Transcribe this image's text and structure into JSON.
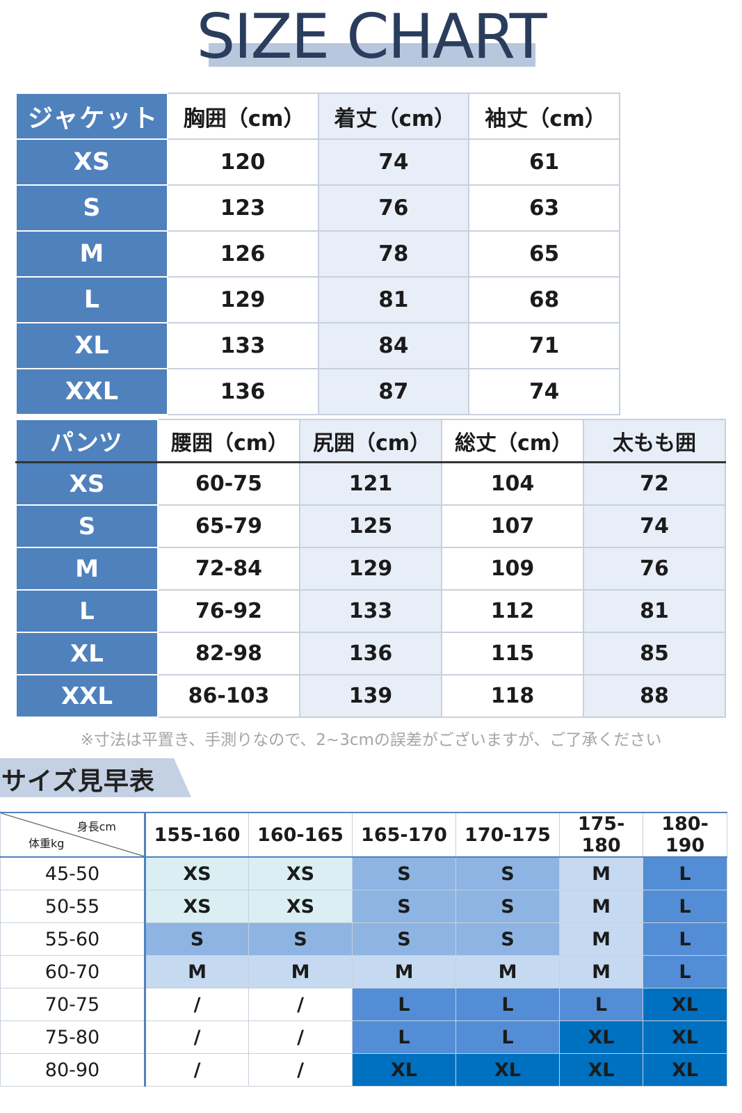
{
  "title": "SIZE CHART",
  "jacket": {
    "corner": "ジャケット",
    "headers": [
      "胸囲（cm）",
      "着丈（cm）",
      "袖丈（cm）"
    ],
    "rows": [
      {
        "size": "XS",
        "values": [
          "120",
          "74",
          "61"
        ]
      },
      {
        "size": "S",
        "values": [
          "123",
          "76",
          "63"
        ]
      },
      {
        "size": "M",
        "values": [
          "126",
          "78",
          "65"
        ]
      },
      {
        "size": "L",
        "values": [
          "129",
          "81",
          "68"
        ]
      },
      {
        "size": "XL",
        "values": [
          "133",
          "84",
          "71"
        ]
      },
      {
        "size": "XXL",
        "values": [
          "136",
          "87",
          "74"
        ]
      }
    ]
  },
  "pants": {
    "corner": "パンツ",
    "headers": [
      "腰囲（cm）",
      "尻囲（cm）",
      "総丈（cm）",
      "太もも囲"
    ],
    "rows": [
      {
        "size": "XS",
        "values": [
          "60-75",
          "121",
          "104",
          "72"
        ]
      },
      {
        "size": "S",
        "values": [
          "65-79",
          "125",
          "107",
          "74"
        ]
      },
      {
        "size": "M",
        "values": [
          "72-84",
          "129",
          "109",
          "76"
        ]
      },
      {
        "size": "L",
        "values": [
          "76-92",
          "133",
          "112",
          "81"
        ]
      },
      {
        "size": "XL",
        "values": [
          "82-98",
          "136",
          "115",
          "85"
        ]
      },
      {
        "size": "XXL",
        "values": [
          "86-103",
          "139",
          "118",
          "88"
        ]
      }
    ]
  },
  "note": "※寸法は平置き、手測りなので、2~3cmの誤差がございますが、ご了承ください",
  "lookup": {
    "section_title": "サイズ見早表",
    "corner_height": "身長cm",
    "corner_weight": "体重kg",
    "height_ranges": [
      "155-160",
      "160-165",
      "165-170",
      "170-175",
      "175-180",
      "180-190"
    ],
    "rows": [
      {
        "weight": "45-50",
        "sizes": [
          "XS",
          "XS",
          "S",
          "S",
          "M",
          "L"
        ],
        "colors": [
          "pale",
          "pale",
          "mid",
          "mid",
          "light",
          "blue"
        ]
      },
      {
        "weight": "50-55",
        "sizes": [
          "XS",
          "XS",
          "S",
          "S",
          "M",
          "L"
        ],
        "colors": [
          "pale",
          "pale",
          "mid",
          "mid",
          "light",
          "blue"
        ]
      },
      {
        "weight": "55-60",
        "sizes": [
          "S",
          "S",
          "S",
          "S",
          "M",
          "L"
        ],
        "colors": [
          "mid",
          "mid",
          "mid",
          "mid",
          "light",
          "blue"
        ]
      },
      {
        "weight": "60-70",
        "sizes": [
          "M",
          "M",
          "M",
          "M",
          "M",
          "L"
        ],
        "colors": [
          "light",
          "light",
          "light",
          "light",
          "light",
          "blue"
        ]
      },
      {
        "weight": "70-75",
        "sizes": [
          "/",
          "/",
          "L",
          "L",
          "L",
          "XL"
        ],
        "colors": [
          "white",
          "white",
          "blue",
          "blue",
          "blue",
          "dark"
        ]
      },
      {
        "weight": "75-80",
        "sizes": [
          "/",
          "/",
          "L",
          "L",
          "XL",
          "XL"
        ],
        "colors": [
          "white",
          "white",
          "blue",
          "blue",
          "dark",
          "dark"
        ]
      },
      {
        "weight": "80-90",
        "sizes": [
          "/",
          "/",
          "XL",
          "XL",
          "XL",
          "XL"
        ],
        "colors": [
          "white",
          "white",
          "dark",
          "dark",
          "dark",
          "dark"
        ]
      }
    ],
    "palette": {
      "pale": "#daeef3",
      "mid": "#8db4e2",
      "light": "#c5d9f1",
      "blue": "#538dd5",
      "dark": "#0070c0",
      "white": "#ffffff"
    }
  }
}
